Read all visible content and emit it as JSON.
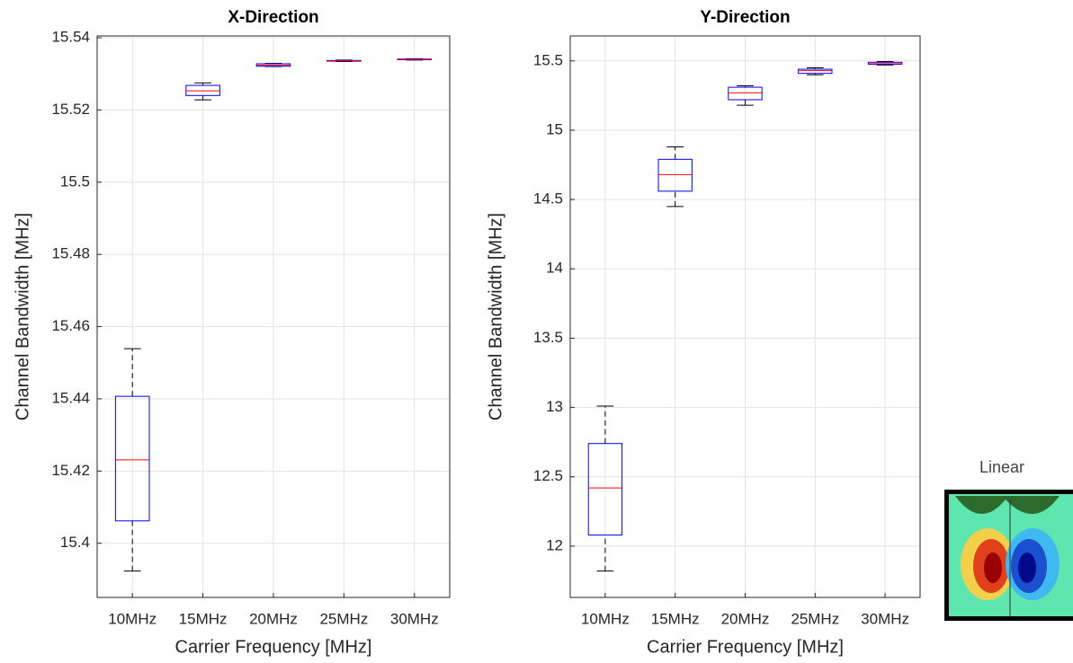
{
  "chart_data": [
    {
      "type": "box",
      "title": "X-Direction",
      "x_label": "Carrier Frequency [MHz]",
      "y_label": "Channel Bandwidth [MHz]",
      "categories": [
        "10MHz",
        "15MHz",
        "20MHz",
        "25MHz",
        "30MHz"
      ],
      "boxes": [
        {
          "whislo": 15.3923,
          "q1": 15.4062,
          "med": 15.4231,
          "q3": 15.4407,
          "whishi": 15.4539
        },
        {
          "whislo": 15.5228,
          "q1": 15.524,
          "med": 15.5253,
          "q3": 15.5268,
          "whishi": 15.5275
        },
        {
          "whislo": 15.532,
          "q1": 15.5321,
          "med": 15.5324,
          "q3": 15.5328,
          "whishi": 15.5329
        },
        {
          "whislo": 15.5334,
          "q1": 15.5335,
          "med": 15.5336,
          "q3": 15.5337,
          "whishi": 15.5338
        },
        {
          "whislo": 15.5338,
          "q1": 15.5339,
          "med": 15.534,
          "q3": 15.5341,
          "whishi": 15.5342
        }
      ],
      "box_color": "#0000ff",
      "median_color": "#ff0000",
      "whisker_color": "#000000",
      "ylim": [
        15.385,
        15.5405
      ],
      "yticks": [
        15.4,
        15.42,
        15.44,
        15.46,
        15.48,
        15.5,
        15.52,
        15.54
      ],
      "grid": true
    },
    {
      "type": "box",
      "title": "Y-Direction",
      "x_label": "Carrier Frequency [MHz]",
      "y_label": "Channel Bandwidth [MHz]",
      "categories": [
        "10MHz",
        "15MHz",
        "20MHz",
        "25MHz",
        "30MHz"
      ],
      "boxes": [
        {
          "whislo": 11.82,
          "q1": 12.08,
          "med": 12.42,
          "q3": 12.74,
          "whishi": 13.01
        },
        {
          "whislo": 14.45,
          "q1": 14.56,
          "med": 14.68,
          "q3": 14.79,
          "whishi": 14.88
        },
        {
          "whislo": 15.18,
          "q1": 15.22,
          "med": 15.27,
          "q3": 15.31,
          "whishi": 15.32
        },
        {
          "whislo": 15.4,
          "q1": 15.41,
          "med": 15.43,
          "q3": 15.44,
          "whishi": 15.45
        },
        {
          "whislo": 15.47,
          "q1": 15.475,
          "med": 15.48,
          "q3": 15.49,
          "whishi": 15.495
        }
      ],
      "box_color": "#0000ff",
      "median_color": "#ff0000",
      "whisker_color": "#000000",
      "ylim": [
        11.63,
        15.68
      ],
      "yticks": [
        12,
        12.5,
        13,
        13.5,
        14,
        14.5,
        15,
        15.5
      ],
      "grid": true
    }
  ],
  "inset": {
    "label": "Linear"
  }
}
